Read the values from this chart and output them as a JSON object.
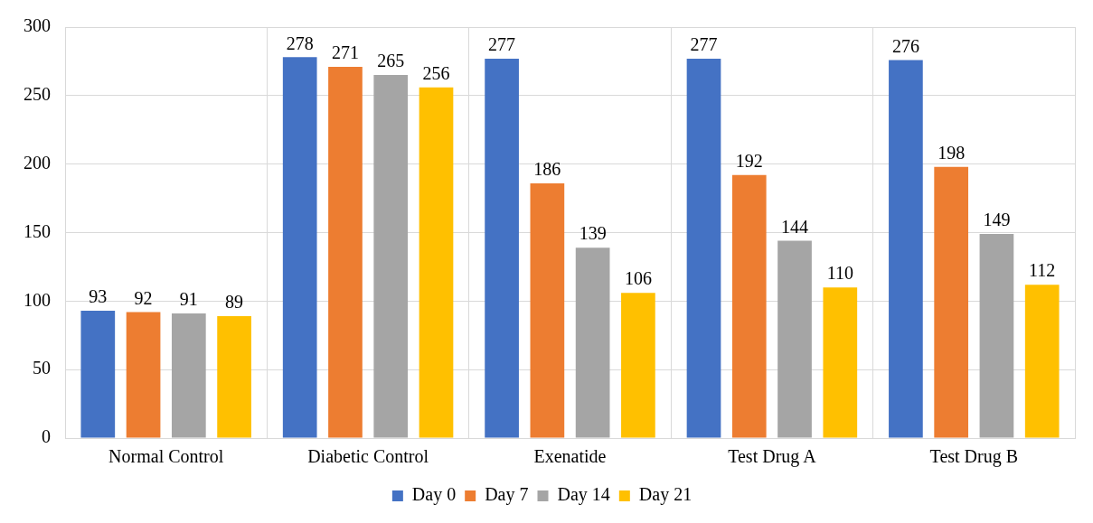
{
  "chart_data": {
    "type": "bar",
    "categories": [
      "Normal Control",
      "Diabetic Control",
      "Exenatide",
      "Test Drug A",
      "Test Drug B"
    ],
    "series": [
      {
        "name": "Day 0",
        "color": "#4472c4",
        "values": [
          93,
          278,
          277,
          277,
          276
        ]
      },
      {
        "name": "Day 7",
        "color": "#ed7d31",
        "values": [
          92,
          271,
          186,
          192,
          198
        ]
      },
      {
        "name": "Day 14",
        "color": "#a5a5a5",
        "values": [
          91,
          265,
          139,
          144,
          149
        ]
      },
      {
        "name": "Day 21",
        "color": "#ffc000",
        "values": [
          89,
          256,
          106,
          110,
          112
        ]
      }
    ],
    "ylim": [
      0,
      300
    ],
    "yticks": [
      0,
      50,
      100,
      150,
      200,
      250,
      300
    ],
    "grid": true,
    "legend": "bottom",
    "data_labels": true
  }
}
